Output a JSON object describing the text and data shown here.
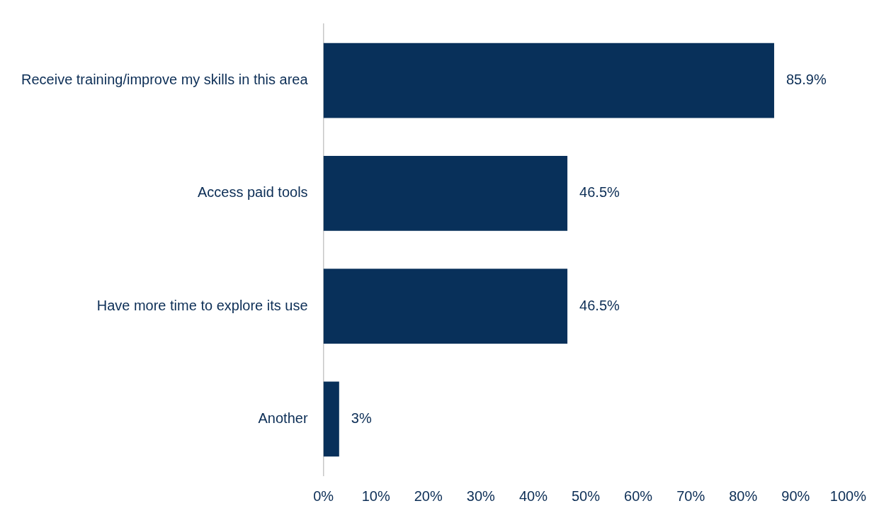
{
  "chart_data": {
    "type": "bar",
    "orientation": "horizontal",
    "categories": [
      "Receive training/improve my skills in this area",
      "Access paid tools",
      "Have more time to explore its use",
      "Another"
    ],
    "values": [
      85.9,
      46.5,
      46.5,
      3
    ],
    "value_labels": [
      "85.9%",
      "46.5%",
      "46.5%",
      "3%"
    ],
    "color": "#08305a",
    "xlim": [
      0,
      100
    ],
    "xticks": [
      {
        "value": 0,
        "label": "0%"
      },
      {
        "value": 10,
        "label": "10%"
      },
      {
        "value": 20,
        "label": "20%"
      },
      {
        "value": 30,
        "label": "30%"
      },
      {
        "value": 40,
        "label": "40%"
      },
      {
        "value": 50,
        "label": "50%"
      },
      {
        "value": 60,
        "label": "60%"
      },
      {
        "value": 70,
        "label": "70%"
      },
      {
        "value": 80,
        "label": "80%"
      },
      {
        "value": 90,
        "label": "90%"
      },
      {
        "value": 100,
        "label": "100%"
      }
    ],
    "grid": false,
    "legend": false
  }
}
